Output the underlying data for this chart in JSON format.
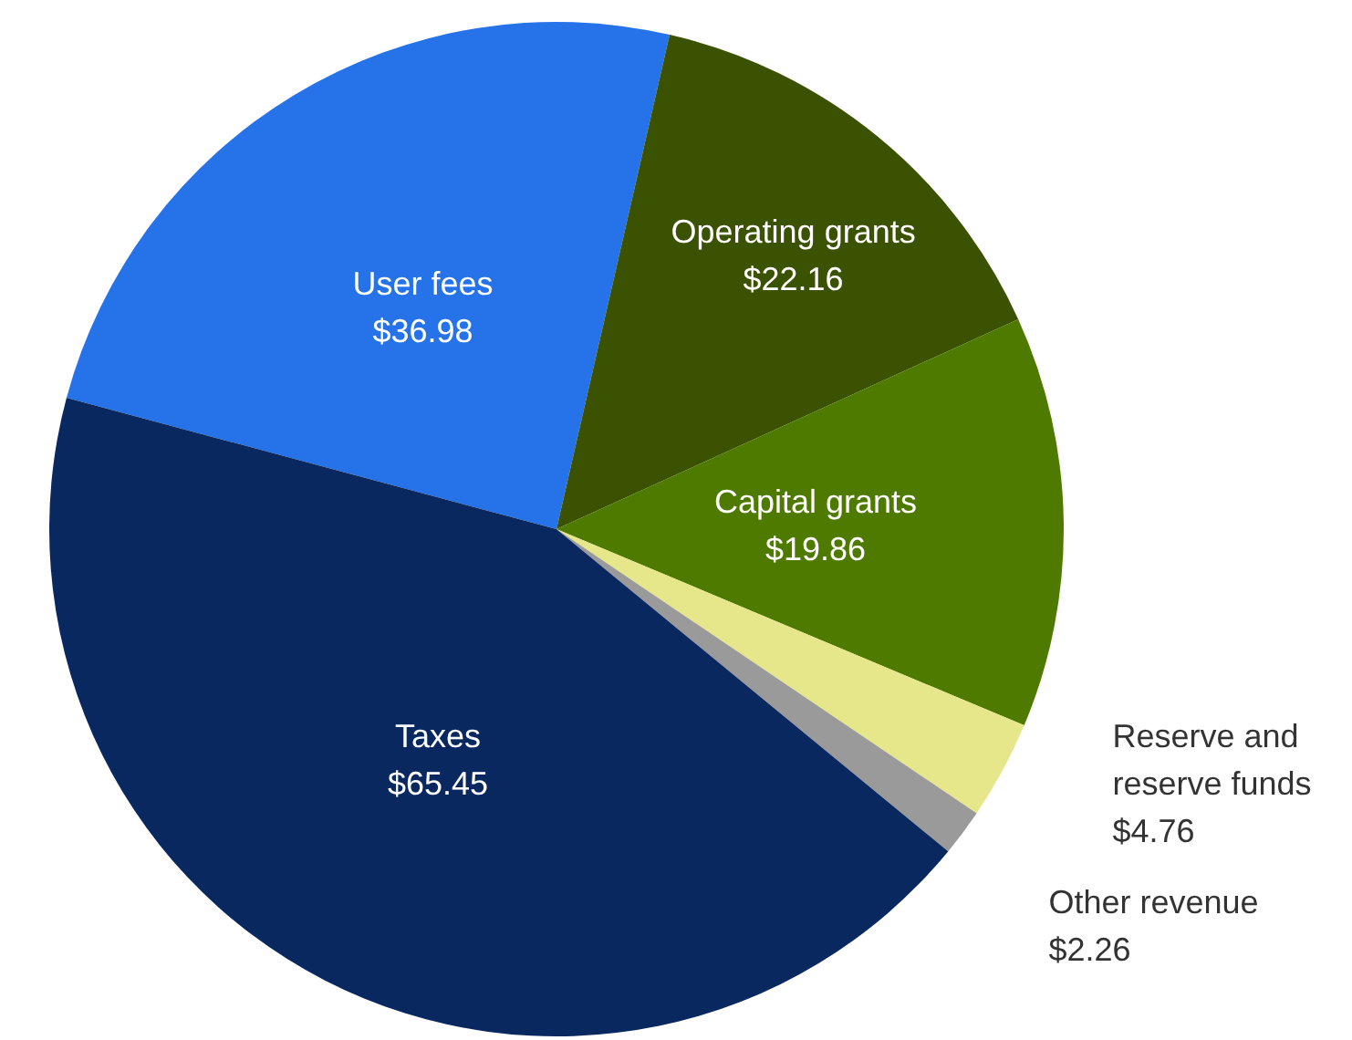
{
  "chart_data": {
    "type": "pie",
    "categories": [
      "User fees",
      "Operating grants",
      "Capital grants",
      "Reserve and reserve funds",
      "Other revenue",
      "Taxes"
    ],
    "values": [
      36.98,
      22.16,
      19.86,
      4.76,
      2.26,
      65.45
    ],
    "value_labels": [
      "$36.98",
      "$22.16",
      "$19.86",
      "$4.76",
      "$2.26",
      "$65.45"
    ],
    "colors": [
      "#2672e8",
      "#3b5203",
      "#4f7a00",
      "#e6e68a",
      "#9a9a9a",
      "#0a2860"
    ],
    "legend": false
  }
}
